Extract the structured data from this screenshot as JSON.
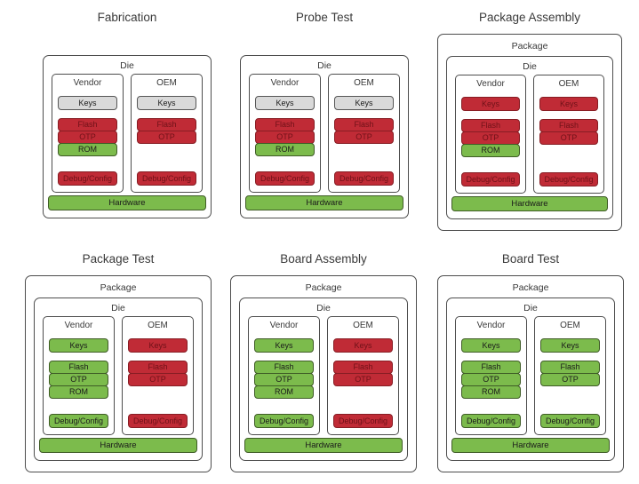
{
  "colors": {
    "red_fill": "#c02b36",
    "red_border": "#871d24",
    "red_text": "#6f1118",
    "green_fill": "#7cbb4c",
    "green_border": "#3f5c26",
    "gray_fill": "#d9d9d9",
    "gray_border": "#565656",
    "outline": "#4d4d4d",
    "label_text": "#383838",
    "text": "#1a1a1a"
  },
  "labels": {
    "package": "Package",
    "die": "Die"
  },
  "stages": [
    {
      "title": "Fabrication",
      "wrapper": "die",
      "vendor": {
        "label": "Vendor",
        "keys": {
          "label": "Keys",
          "color": "gray"
        },
        "memory": [
          {
            "label": "Flash",
            "color": "red"
          },
          {
            "label": "OTP",
            "color": "red"
          },
          {
            "label": "ROM",
            "color": "green"
          }
        ],
        "debug": {
          "label": "Debug/Config",
          "color": "red"
        }
      },
      "oem": {
        "label": "OEM",
        "keys": {
          "label": "Keys",
          "color": "gray"
        },
        "memory": [
          {
            "label": "Flash",
            "color": "red"
          },
          {
            "label": "OTP",
            "color": "red"
          }
        ],
        "debug": {
          "label": "Debug/Config",
          "color": "red"
        }
      },
      "hardware": {
        "label": "Hardware",
        "color": "green"
      }
    },
    {
      "title": "Probe Test",
      "wrapper": "die",
      "vendor": {
        "label": "Vendor",
        "keys": {
          "label": "Keys",
          "color": "gray"
        },
        "memory": [
          {
            "label": "Flash",
            "color": "red"
          },
          {
            "label": "OTP",
            "color": "red"
          },
          {
            "label": "ROM",
            "color": "green"
          }
        ],
        "debug": {
          "label": "Debug/Config",
          "color": "red"
        }
      },
      "oem": {
        "label": "OEM",
        "keys": {
          "label": "Keys",
          "color": "gray"
        },
        "memory": [
          {
            "label": "Flash",
            "color": "red"
          },
          {
            "label": "OTP",
            "color": "red"
          }
        ],
        "debug": {
          "label": "Debug/Config",
          "color": "red"
        }
      },
      "hardware": {
        "label": "Hardware",
        "color": "green"
      }
    },
    {
      "title": "Package Assembly",
      "wrapper": "package",
      "vendor": {
        "label": "Vendor",
        "keys": {
          "label": "Keys",
          "color": "red"
        },
        "memory": [
          {
            "label": "Flash",
            "color": "red"
          },
          {
            "label": "OTP",
            "color": "red"
          },
          {
            "label": "ROM",
            "color": "green"
          }
        ],
        "debug": {
          "label": "Debug/Config",
          "color": "red"
        }
      },
      "oem": {
        "label": "OEM",
        "keys": {
          "label": "Keys",
          "color": "red"
        },
        "memory": [
          {
            "label": "Flash",
            "color": "red"
          },
          {
            "label": "OTP",
            "color": "red"
          }
        ],
        "debug": {
          "label": "Debug/Config",
          "color": "red"
        }
      },
      "hardware": {
        "label": "Hardware",
        "color": "green"
      }
    },
    {
      "title": "Package Test",
      "wrapper": "package",
      "vendor": {
        "label": "Vendor",
        "keys": {
          "label": "Keys",
          "color": "green"
        },
        "memory": [
          {
            "label": "Flash",
            "color": "green"
          },
          {
            "label": "OTP",
            "color": "green"
          },
          {
            "label": "ROM",
            "color": "green"
          }
        ],
        "debug": {
          "label": "Debug/Config",
          "color": "green"
        }
      },
      "oem": {
        "label": "OEM",
        "keys": {
          "label": "Keys",
          "color": "red"
        },
        "memory": [
          {
            "label": "Flash",
            "color": "red"
          },
          {
            "label": "OTP",
            "color": "red"
          }
        ],
        "debug": {
          "label": "Debug/Config",
          "color": "red"
        }
      },
      "hardware": {
        "label": "Hardware",
        "color": "green"
      }
    },
    {
      "title": "Board Assembly",
      "wrapper": "package",
      "vendor": {
        "label": "Vendor",
        "keys": {
          "label": "Keys",
          "color": "green"
        },
        "memory": [
          {
            "label": "Flash",
            "color": "green"
          },
          {
            "label": "OTP",
            "color": "green"
          },
          {
            "label": "ROM",
            "color": "green"
          }
        ],
        "debug": {
          "label": "Debug/Config",
          "color": "green"
        }
      },
      "oem": {
        "label": "OEM",
        "keys": {
          "label": "Keys",
          "color": "red"
        },
        "memory": [
          {
            "label": "Flash",
            "color": "red"
          },
          {
            "label": "OTP",
            "color": "red"
          }
        ],
        "debug": {
          "label": "Debug/Config",
          "color": "red"
        }
      },
      "hardware": {
        "label": "Hardware",
        "color": "green"
      }
    },
    {
      "title": "Board Test",
      "wrapper": "package",
      "vendor": {
        "label": "Vendor",
        "keys": {
          "label": "Keys",
          "color": "green"
        },
        "memory": [
          {
            "label": "Flash",
            "color": "green"
          },
          {
            "label": "OTP",
            "color": "green"
          },
          {
            "label": "ROM",
            "color": "green"
          }
        ],
        "debug": {
          "label": "Debug/Config",
          "color": "green"
        }
      },
      "oem": {
        "label": "OEM",
        "keys": {
          "label": "Keys",
          "color": "green"
        },
        "memory": [
          {
            "label": "Flash",
            "color": "green"
          },
          {
            "label": "OTP",
            "color": "green"
          }
        ],
        "debug": {
          "label": "Debug/Config",
          "color": "green"
        }
      },
      "hardware": {
        "label": "Hardware",
        "color": "green"
      }
    }
  ]
}
